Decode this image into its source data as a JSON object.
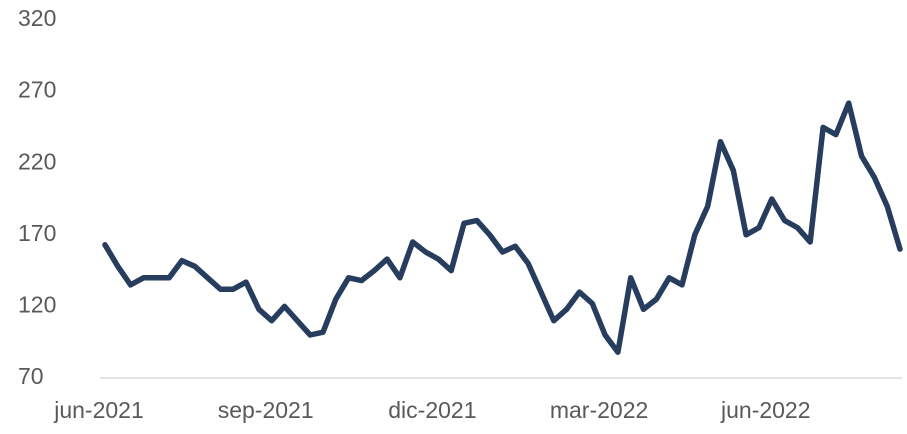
{
  "chart_data": {
    "type": "line",
    "categories": [
      "jun-2021",
      null,
      null,
      null,
      null,
      null,
      null,
      null,
      null,
      null,
      null,
      null,
      null,
      "sep-2021",
      null,
      null,
      null,
      null,
      null,
      null,
      null,
      null,
      null,
      null,
      null,
      null,
      "dic-2021",
      null,
      null,
      null,
      null,
      null,
      null,
      null,
      null,
      null,
      null,
      null,
      null,
      "mar-2022",
      null,
      null,
      null,
      null,
      null,
      null,
      null,
      null,
      null,
      null,
      null,
      null,
      "jun-2022",
      null,
      null,
      null,
      null,
      null,
      null,
      null,
      null,
      null,
      null
    ],
    "series": [
      {
        "color": "#263d5e",
        "values": [
          163,
          148,
          135,
          140,
          140,
          140,
          152,
          148,
          140,
          132,
          132,
          137,
          118,
          110,
          120,
          110,
          100,
          102,
          125,
          140,
          138,
          145,
          153,
          140,
          165,
          158,
          153,
          145,
          178,
          180,
          170,
          158,
          162,
          150,
          130,
          110,
          118,
          130,
          122,
          100,
          88,
          140,
          118,
          125,
          140,
          135,
          170,
          190,
          235,
          215,
          170,
          175,
          195,
          180,
          175,
          165,
          245,
          240,
          262,
          225,
          210,
          190,
          160
        ]
      }
    ],
    "ylim": [
      70,
      320
    ],
    "yticks": [
      70,
      120,
      170,
      220,
      270,
      320
    ]
  }
}
